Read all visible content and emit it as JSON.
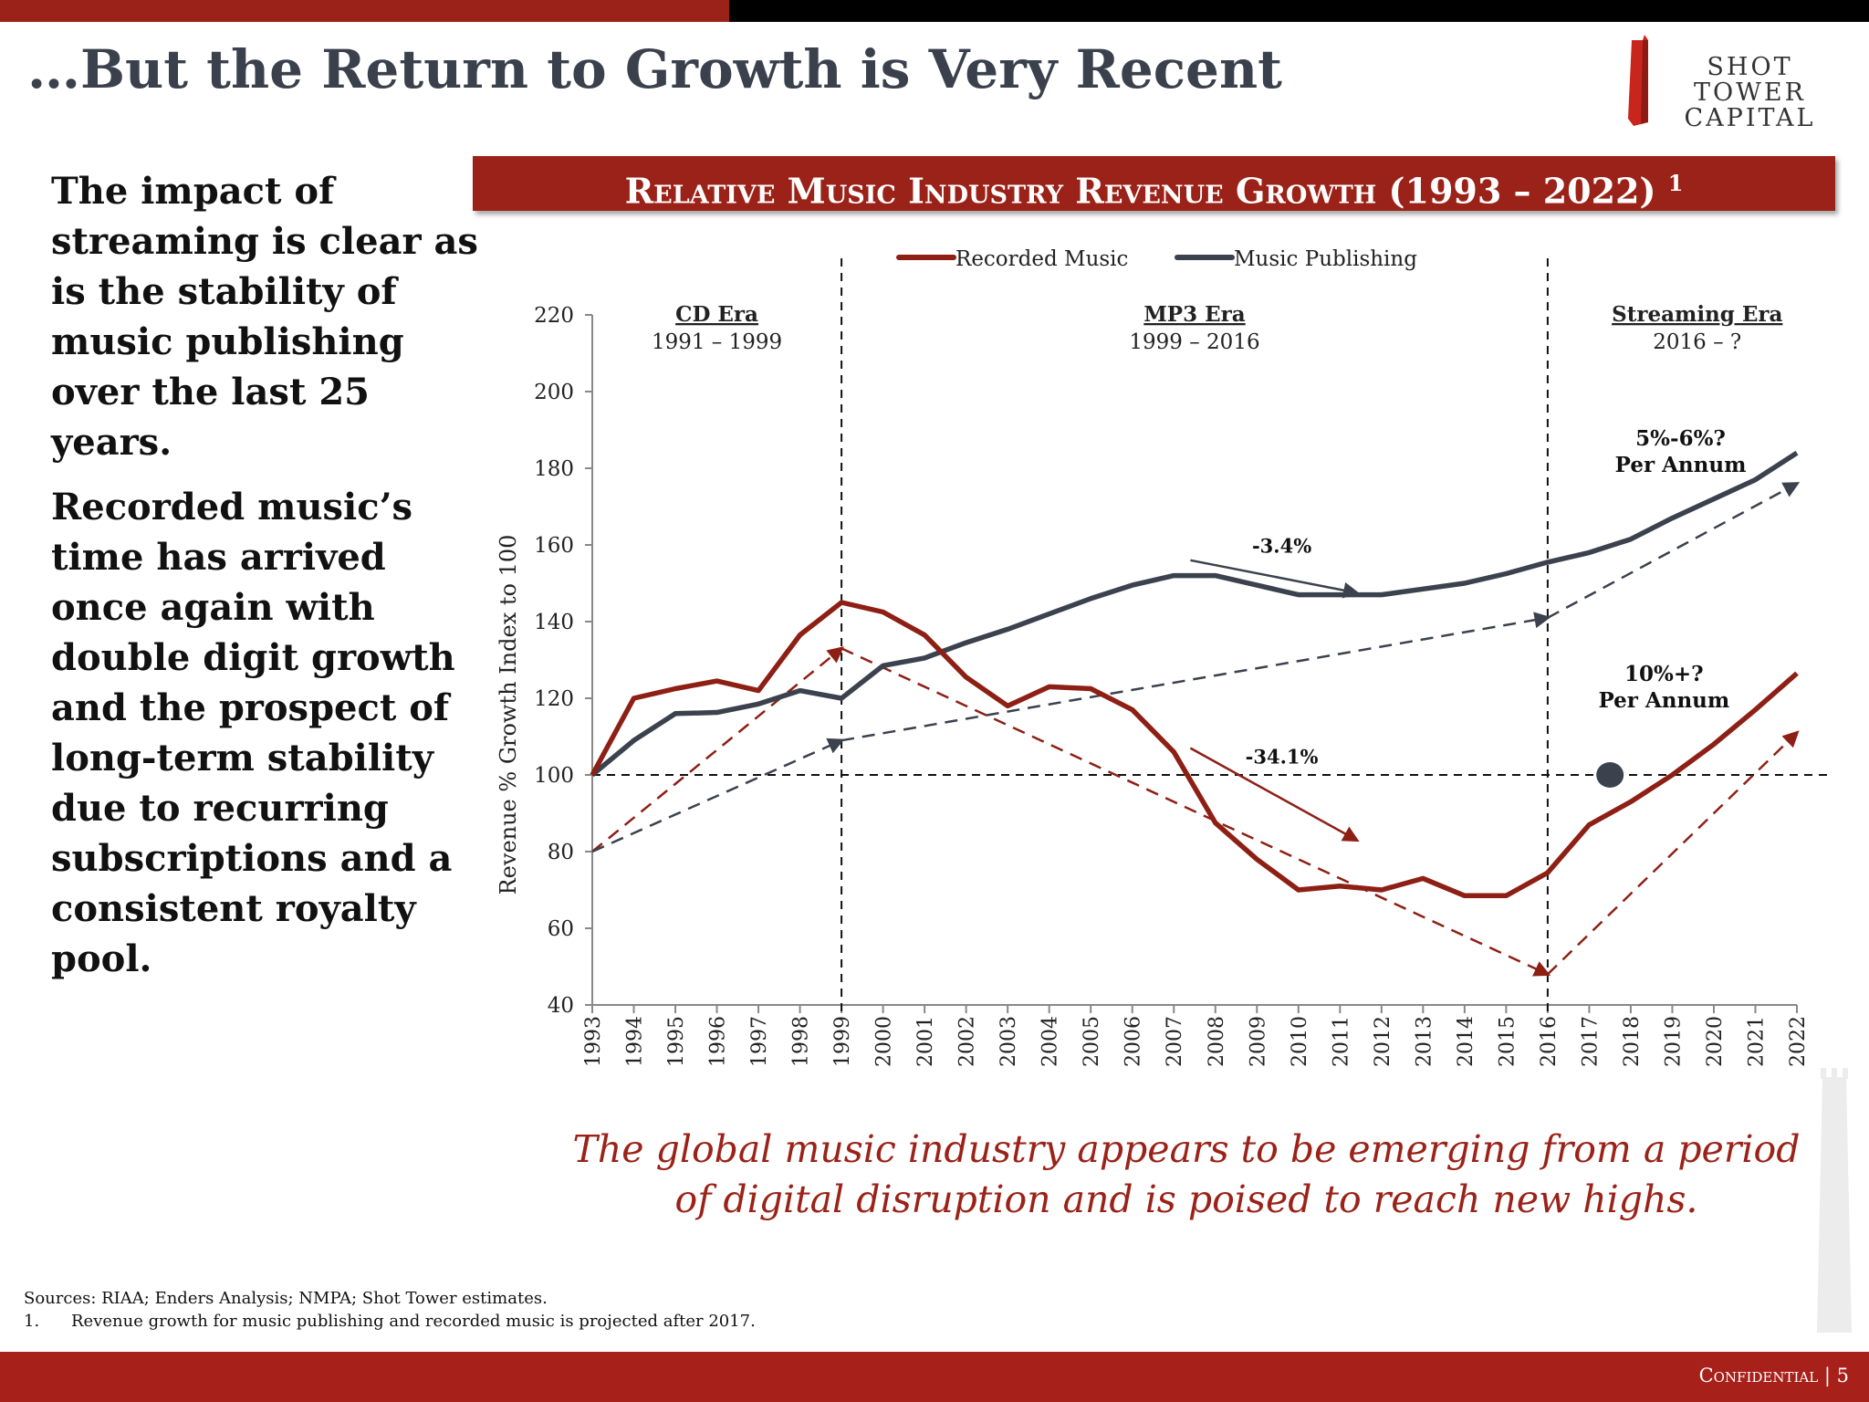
{
  "heading": "…But the Return to Growth is Very Recent",
  "logo": {
    "line1": "SHOT TOWER",
    "line2": "CAPITAL"
  },
  "left_text": {
    "p1": "The impact of streaming is clear as is the stability of music publishing over the last 25 years.",
    "p2": "Recorded music’s time has arrived once again with double digit growth and the prospect of long-term stability due to recurring subscriptions and a consistent royalty pool."
  },
  "tagline": {
    "line1": "The global music industry appears to be emerging from a period",
    "line2": "of digital disruption and is poised to reach new highs."
  },
  "sources": {
    "line1": "Sources: RIAA; Enders Analysis; NMPA; Shot Tower estimates.",
    "note_num": "1.",
    "note_text": "Revenue growth for music publishing and recorded music is projected after 2017."
  },
  "footer": {
    "label": "Confidential | 5"
  },
  "colors": {
    "accent": "#9b2218",
    "recorded": "#8e1f15",
    "publishing": "#3b424e"
  },
  "chart_data": {
    "type": "line",
    "title": "Relative Music Industry Revenue Growth (1993 – 2022)",
    "title_sup": "1",
    "ylabel": "Revenue % Growth Index to 100",
    "xlabel": "",
    "ylim": [
      40,
      220
    ],
    "yticks": [
      40,
      60,
      80,
      100,
      120,
      140,
      160,
      180,
      200,
      220
    ],
    "x": [
      1993,
      1994,
      1995,
      1996,
      1997,
      1998,
      1999,
      2000,
      2001,
      2002,
      2003,
      2004,
      2005,
      2006,
      2007,
      2008,
      2009,
      2010,
      2011,
      2012,
      2013,
      2014,
      2015,
      2016,
      2017,
      2018,
      2019,
      2020,
      2021,
      2022
    ],
    "legend_position": "top",
    "series": [
      {
        "name": "Recorded Music",
        "color": "#8e1f15",
        "values": [
          100,
          120,
          122.5,
          124.5,
          122,
          136.5,
          145,
          142.5,
          136.5,
          125.5,
          118,
          123,
          122.5,
          117,
          106,
          87.5,
          78,
          70,
          71,
          70,
          73,
          68.5,
          68.5,
          74.5,
          87,
          93,
          100,
          108,
          117,
          126.5
        ]
      },
      {
        "name": "Music Publishing",
        "color": "#3b424e",
        "values": [
          100,
          109,
          116,
          116.3,
          118.5,
          122,
          120,
          128.5,
          130.5,
          134.5,
          138,
          142,
          146,
          149.5,
          152,
          152,
          149.5,
          147,
          147,
          147,
          148.5,
          150,
          152.5,
          155.5,
          158,
          161.5,
          167,
          172,
          177,
          184
        ]
      }
    ],
    "trend_lines": [
      {
        "series": "Recorded Music",
        "points": [
          [
            1993,
            80
          ],
          [
            1999,
            133
          ],
          [
            2016,
            48
          ],
          [
            2022,
            111
          ]
        ]
      },
      {
        "series": "Music Publishing",
        "points": [
          [
            1993,
            80
          ],
          [
            1999,
            109
          ],
          [
            2016,
            141
          ],
          [
            2022,
            176
          ]
        ]
      }
    ],
    "reference_line_y": 100,
    "marker_point": [
      2017.5,
      100
    ],
    "era_dividers": [
      1999,
      2016
    ],
    "eras": [
      {
        "name": "CD Era",
        "range": "1991 – 1999",
        "at": 1996
      },
      {
        "name": "MP3 Era",
        "range": "1999 – 2016",
        "at": 2007.5
      },
      {
        "name": "Streaming Era",
        "range": "2016 – ?",
        "at": 2019.6
      }
    ],
    "annotations": [
      {
        "text": "-3.4%",
        "series": "Music Publishing",
        "arrow_from": [
          2007.4,
          156
        ],
        "arrow_to": [
          2011.4,
          147.5
        ],
        "at": [
          2009.6,
          158
        ]
      },
      {
        "text": "-34.1%",
        "series": "Recorded Music",
        "arrow_from": [
          2007.4,
          107
        ],
        "arrow_to": [
          2011.4,
          83
        ],
        "at": [
          2009.6,
          103
        ]
      },
      {
        "text1": "5%-6%?",
        "text2": "Per Annum",
        "at": [
          2019.2,
          186
        ]
      },
      {
        "text1": "10%+?",
        "text2": "Per Annum",
        "at": [
          2018.8,
          124.5
        ]
      }
    ]
  }
}
